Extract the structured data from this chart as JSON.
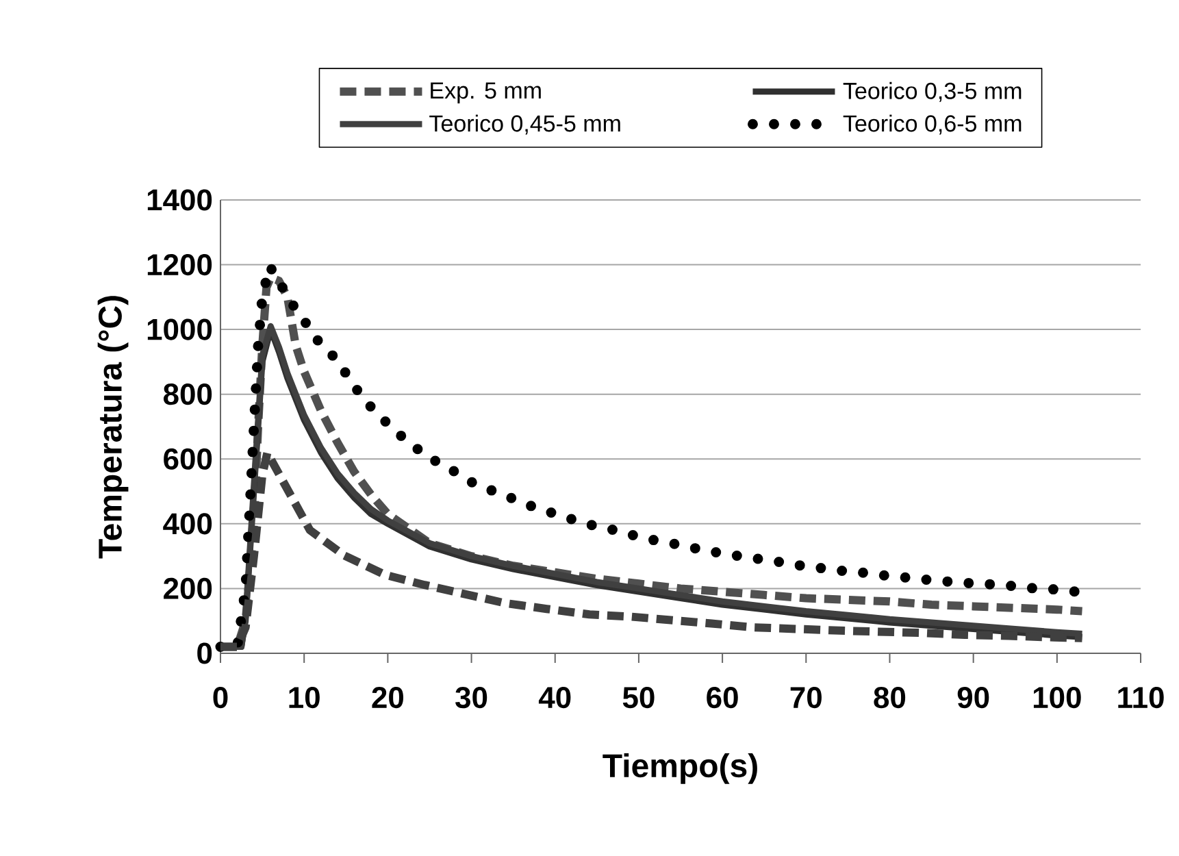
{
  "chart_data": {
    "type": "line",
    "xlabel": "Tiempo(s)",
    "ylabel": "Temperatura (°C)",
    "xlim": [
      0,
      110
    ],
    "xticks": [
      0,
      10,
      20,
      30,
      40,
      50,
      60,
      70,
      80,
      90,
      100,
      110
    ],
    "ylim": [
      0,
      1400
    ],
    "yticks": [
      0,
      200,
      400,
      600,
      800,
      1000,
      1200,
      1400
    ],
    "grid": "y",
    "legend": "top",
    "series": [
      {
        "name": "Exp. 5 mm",
        "color": "#505050",
        "line_style": "dashed",
        "x": [
          0,
          2,
          3,
          4,
          4.5,
          5,
          5.5,
          6,
          7,
          8,
          9,
          10,
          12,
          14,
          16,
          18,
          20,
          25,
          30,
          35,
          40,
          45,
          50,
          55,
          60,
          65,
          70,
          75,
          80,
          85,
          90,
          95,
          100,
          103
        ],
        "values": [
          20,
          20,
          100,
          400,
          700,
          950,
          1130,
          1160,
          1150,
          1100,
          950,
          870,
          750,
          650,
          560,
          490,
          430,
          340,
          300,
          270,
          250,
          230,
          215,
          200,
          190,
          180,
          170,
          165,
          160,
          150,
          145,
          140,
          135,
          130
        ]
      },
      {
        "name": "Teorico  0,3-5 mm",
        "color": "#303030",
        "line_style": "solid",
        "x": [
          0,
          2.5,
          3,
          4,
          5,
          6,
          7,
          8,
          10,
          12,
          14,
          16,
          18,
          20,
          25,
          30,
          35,
          40,
          45,
          50,
          55,
          60,
          65,
          70,
          75,
          80,
          85,
          90,
          95,
          100,
          103
        ],
        "values": [
          20,
          20,
          100,
          500,
          900,
          1000,
          930,
          850,
          720,
          620,
          540,
          480,
          430,
          400,
          330,
          290,
          260,
          235,
          210,
          190,
          170,
          150,
          135,
          120,
          108,
          95,
          85,
          75,
          65,
          55,
          50
        ]
      },
      {
        "name": "Teorico 0,45-5 mm",
        "color": "#404040",
        "line_style": "solid",
        "x": [
          0,
          2.5,
          3,
          4,
          5,
          6,
          7,
          8,
          10,
          12,
          14,
          16,
          18,
          20,
          25,
          30,
          35,
          40,
          45,
          50,
          55,
          60,
          65,
          70,
          75,
          80,
          85,
          90,
          95,
          100,
          103
        ],
        "values": [
          20,
          20,
          110,
          520,
          920,
          1010,
          945,
          865,
          735,
          635,
          555,
          495,
          445,
          410,
          340,
          300,
          270,
          245,
          220,
          200,
          180,
          160,
          145,
          130,
          118,
          105,
          95,
          85,
          75,
          65,
          60
        ]
      },
      {
        "name": "Teorico 0,6-5 mm",
        "color": "#000000",
        "line_style": "dotted",
        "x": [
          0,
          2,
          3,
          4,
          4.5,
          5,
          5.85,
          7,
          8,
          10.2,
          11.8,
          13.9,
          15.4,
          17.1,
          19,
          21.1,
          23.2,
          25.4,
          27.8,
          30.2,
          32.6,
          35.1,
          37.6,
          40.2,
          42.7,
          45.2,
          47.8,
          50.4,
          52.8,
          55.4,
          58,
          60.6,
          63.2,
          65.8,
          68.4,
          71,
          73.6,
          76.2,
          78.8,
          81.5,
          84.1,
          86.7,
          89.4,
          92.1,
          94.7,
          97.4,
          100,
          102.7
        ],
        "values": [
          20,
          20,
          200,
          700,
          950,
          1100,
          1196,
          1150,
          1100,
          1020,
          960,
          907,
          848,
          785,
          733,
          682,
          637,
          598,
          564,
          526,
          501,
          476,
          450,
          429,
          408,
          390,
          377,
          356,
          345,
          332,
          317,
          306,
          295,
          287,
          274,
          266,
          256,
          251,
          242,
          235,
          228,
          222,
          217,
          213,
          208,
          200,
          197,
          189
        ]
      },
      {
        "color": "#404040",
        "line_style": "dashed",
        "x": [
          0,
          2,
          3,
          4,
          5,
          5.6,
          10.7,
          14.8,
          19.7,
          24.4,
          34,
          39,
          44.1,
          49.1,
          58.7,
          63.7,
          69,
          74,
          83.8,
          89,
          94.2,
          99.7,
          103
        ],
        "values": [
          20,
          20,
          80,
          300,
          550,
          619,
          380,
          302,
          242,
          211,
          155,
          137,
          120,
          113,
          92,
          80,
          75,
          70,
          63,
          57,
          54,
          49,
          47
        ]
      }
    ]
  }
}
